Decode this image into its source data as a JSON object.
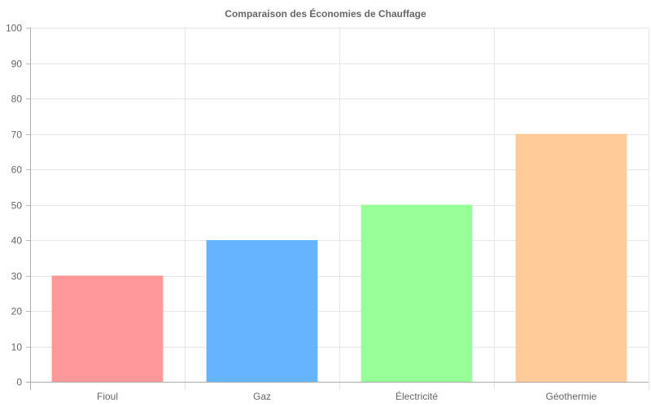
{
  "chart_data": {
    "type": "bar",
    "title": "Comparaison des Économies de Chauffage",
    "xlabel": "",
    "ylabel": "",
    "categories": [
      "Fioul",
      "Gaz",
      "Électricité",
      "Géothermie"
    ],
    "values": [
      30,
      40,
      50,
      70
    ],
    "colors": [
      "#ff9999",
      "#66b3ff",
      "#99ff99",
      "#ffcc99"
    ],
    "ylim": [
      0,
      100
    ],
    "yticks": [
      0,
      10,
      20,
      30,
      40,
      50,
      60,
      70,
      80,
      90,
      100
    ],
    "grid": true,
    "legend": "none"
  }
}
